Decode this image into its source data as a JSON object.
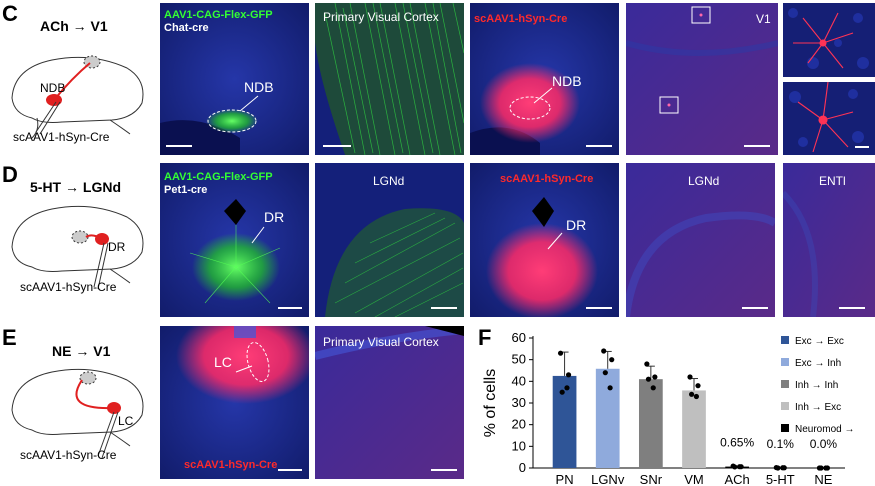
{
  "rows": [
    {
      "letter": "C",
      "title": "ACh → V1",
      "region": "NDB",
      "virus": "scAAV1-hSyn-Cre",
      "panels": {
        "p1_caption_1": "AAV1-CAG-Flex-GFP",
        "p1_caption_2": "Chat-cre",
        "p1_label": "NDB",
        "p2_caption": "Primary Visual Cortex",
        "p3_caption": "scAAV1-hSyn-Cre",
        "p3_label": "NDB",
        "p4_caption": "V1"
      }
    },
    {
      "letter": "D",
      "title": "5-HT → LGNd",
      "region": "DR",
      "virus": "scAAV1-hSyn-Cre",
      "panels": {
        "p1_caption_1": "AAV1-CAG-Flex-GFP",
        "p1_caption_2": "Pet1-cre",
        "p1_label": "DR",
        "p2_caption": "LGNd",
        "p3_caption": "scAAV1-hSyn-Cre",
        "p3_label": "DR",
        "p4_caption": "LGNd",
        "p5_caption": "ENTl"
      }
    },
    {
      "letter": "E",
      "title": "NE → V1",
      "region": "LC",
      "virus": "scAAV1-hSyn-Cre",
      "panels": {
        "p1_label": "LC",
        "p1_caption": "scAAV1-hSyn-Cre",
        "p2_caption": "Primary Visual Cortex"
      }
    }
  ],
  "chart_letter": "F",
  "chart_data": {
    "type": "bar",
    "ylabel": "% of cells",
    "ylim": [
      0,
      60
    ],
    "yticks": [
      0,
      10,
      20,
      30,
      40,
      50,
      60
    ],
    "categories": [
      "PN",
      "LGNv",
      "SNr",
      "VM",
      "ACh",
      "5-HT",
      "NE"
    ],
    "values": [
      42.5,
      45.8,
      41.0,
      35.8,
      0.65,
      0.1,
      0.0
    ],
    "errors": [
      11.0,
      8.0,
      6.0,
      5.5,
      0,
      0,
      0
    ],
    "points": [
      [
        53,
        43,
        35,
        37
      ],
      [
        54,
        50,
        44,
        37
      ],
      [
        48,
        42,
        41,
        37
      ],
      [
        42,
        38,
        34,
        33
      ],
      [
        0.9,
        0.6,
        0.5,
        0.6
      ],
      [
        0.2,
        0.1,
        0.0,
        0.1
      ],
      [
        0.0,
        0.0,
        0.0,
        0.0
      ]
    ],
    "value_labels": [
      "",
      "",
      "",
      "",
      "0.65%",
      "0.1%",
      "0.0%"
    ],
    "bar_colors": [
      "#2f5597",
      "#8faadc",
      "#7f7f7f",
      "#bfbfbf",
      "#000000",
      "#000000",
      "#000000"
    ],
    "legend": [
      {
        "label": "Exc → Exc",
        "color": "#2f5597"
      },
      {
        "label": "Exc → Inh",
        "color": "#8faadc"
      },
      {
        "label": "Inh → Inh",
        "color": "#7f7f7f"
      },
      {
        "label": "Inh → Exc",
        "color": "#bfbfbf"
      },
      {
        "label": "Neuromod →",
        "color": "#000000"
      }
    ],
    "legend_position": "top-right"
  },
  "colors": {
    "green_caption": "#33ff33",
    "red_caption": "#ff2a2a",
    "tissue_blue": "#1a2a8c",
    "red_injection": "#ff3366"
  }
}
